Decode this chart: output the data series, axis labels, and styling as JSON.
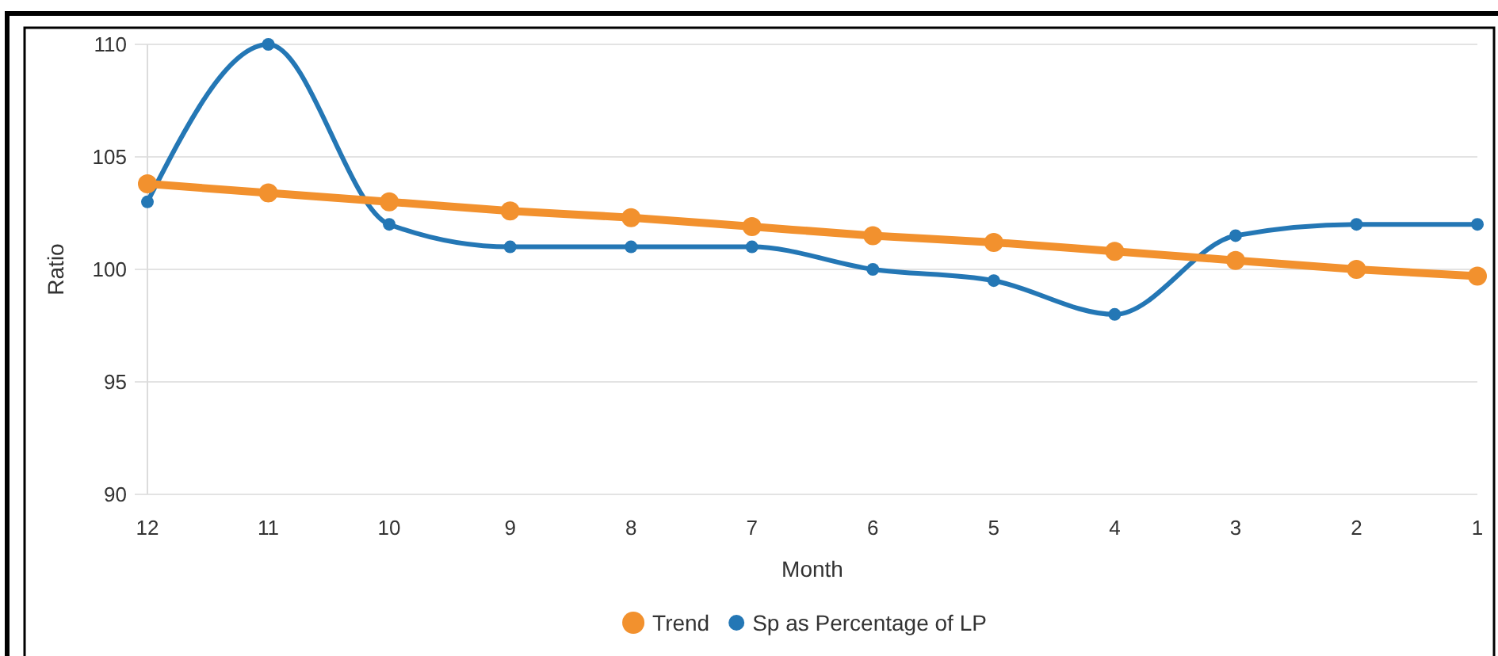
{
  "chart_data": {
    "type": "line",
    "xlabel": "Month",
    "ylabel": "Ratio",
    "categories": [
      "12",
      "11",
      "10",
      "9",
      "8",
      "7",
      "6",
      "5",
      "4",
      "3",
      "2",
      "1"
    ],
    "series": [
      {
        "name": "Trend",
        "color": "#f2912e",
        "values": [
          103.8,
          103.4,
          103.0,
          102.6,
          102.3,
          101.9,
          101.5,
          101.2,
          100.8,
          100.4,
          100.0,
          99.7
        ]
      },
      {
        "name": "Sp as Percentage of LP",
        "color": "#2477b5",
        "values": [
          103,
          110,
          102,
          101,
          101,
          101,
          100,
          99.5,
          98,
          101.5,
          102,
          102
        ]
      }
    ],
    "ylim": [
      90,
      110
    ],
    "yticks": [
      90,
      95,
      100,
      105,
      110
    ],
    "grid": "y",
    "legend": "bottom",
    "marker": "circle",
    "line_style": "solid"
  }
}
